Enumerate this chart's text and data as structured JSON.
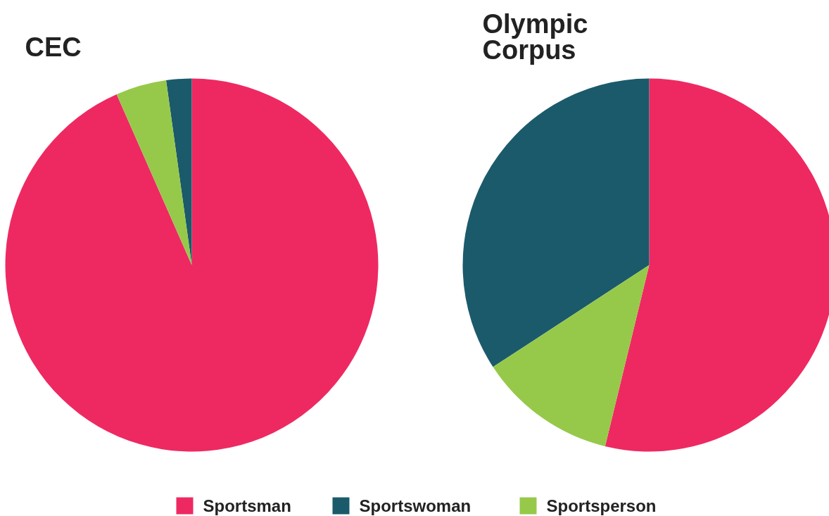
{
  "chart_data": [
    {
      "type": "pie",
      "title": "CEC",
      "categories": [
        "Sportsman",
        "Sportswoman",
        "Sportsperson"
      ],
      "values": [
        93.4,
        2.2,
        4.4
      ],
      "colors": [
        "#ee2962",
        "#1b5a6b",
        "#96c94a"
      ],
      "legend": "bottom"
    },
    {
      "type": "pie",
      "title": "Olympic\nCorpus",
      "values": [
        53.8,
        34.2,
        12.0
      ],
      "colors": [
        "#ee2962",
        "#1b5a6b",
        "#96c94a"
      ]
    }
  ]
}
